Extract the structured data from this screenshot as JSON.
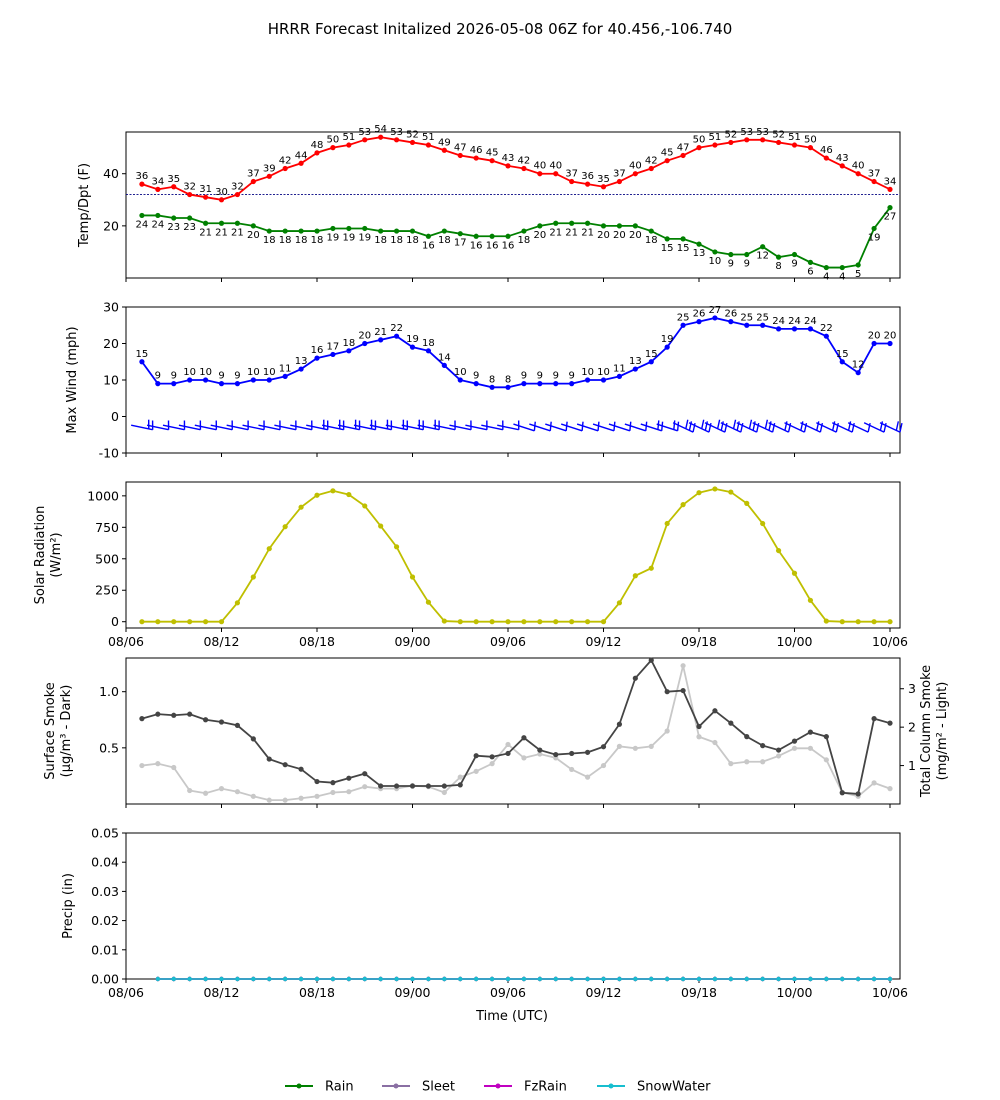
{
  "title": "HRRR Forecast Initalized 2026-05-08 06Z for 40.456,-106.740",
  "time_ticks": [
    "08/06",
    "08/12",
    "08/18",
    "09/00",
    "09/06",
    "09/12",
    "09/18",
    "10/00",
    "10/06"
  ],
  "xlabel": "Time (UTC)",
  "legend": [
    {
      "label": "Rain",
      "color": "#008000"
    },
    {
      "label": "Sleet",
      "color": "#8a6fa3"
    },
    {
      "label": "FzRain",
      "color": "#c000c0"
    },
    {
      "label": "SnowWater",
      "color": "#17becf"
    }
  ],
  "chart_data": [
    {
      "type": "line",
      "ylabel": "Temp/Dpt (F)",
      "ylim": [
        0,
        56
      ],
      "yticks": [
        20,
        40
      ],
      "x": [
        1,
        2,
        3,
        4,
        5,
        6,
        7,
        8,
        9,
        10,
        11,
        12,
        13,
        14,
        15,
        16,
        17,
        18,
        19,
        20,
        21,
        22,
        23,
        24,
        25,
        26,
        27,
        28,
        29,
        30,
        31,
        32,
        33,
        34,
        35,
        36,
        37,
        38,
        39,
        40,
        41,
        42,
        43,
        44,
        45,
        46,
        47,
        48
      ],
      "series": [
        {
          "name": "Temp",
          "color": "#ff0000",
          "values": [
            36,
            34,
            35,
            32,
            31,
            30,
            32,
            37,
            39,
            42,
            44,
            48,
            50,
            51,
            53,
            54,
            53,
            52,
            51,
            49,
            47,
            46,
            45,
            43,
            42,
            40,
            40,
            37,
            36,
            35,
            37,
            40,
            42,
            45,
            47,
            50,
            51,
            52,
            53,
            53,
            52,
            51,
            50,
            46,
            43,
            40,
            37,
            34
          ]
        },
        {
          "name": "Dewpoint",
          "color": "#008000",
          "values": [
            24,
            24,
            23,
            23,
            21,
            21,
            21,
            20,
            18,
            18,
            18,
            18,
            19,
            19,
            19,
            18,
            18,
            18,
            16,
            18,
            17,
            16,
            16,
            16,
            18,
            20,
            21,
            21,
            21,
            20,
            20,
            20,
            18,
            15,
            15,
            13,
            10,
            9,
            9,
            12,
            8,
            9,
            6,
            4,
            4,
            5,
            19,
            27
          ]
        }
      ],
      "reference_line": 32
    },
    {
      "type": "line",
      "ylabel": "Max Wind (mph)",
      "ylim": [
        -10,
        30
      ],
      "yticks": [
        -10,
        0,
        10,
        20,
        30
      ],
      "series": [
        {
          "name": "Max Wind",
          "color": "#0000ff",
          "values": [
            15,
            9,
            9,
            10,
            10,
            9,
            9,
            10,
            10,
            11,
            13,
            16,
            17,
            18,
            20,
            21,
            22,
            19,
            18,
            14,
            10,
            9,
            8,
            8,
            9,
            9,
            9,
            9,
            10,
            10,
            11,
            13,
            15,
            19,
            25,
            26,
            27,
            26,
            25,
            25,
            24,
            24,
            24,
            22,
            15,
            12,
            20,
            20
          ]
        }
      ],
      "wind_barbs": "yes"
    },
    {
      "type": "line",
      "ylabel": "Solar Radiation (W/m²)",
      "ylim": [
        -50,
        1110
      ],
      "yticks": [
        0,
        250,
        500,
        750,
        1000
      ],
      "series": [
        {
          "name": "Solar Radiation",
          "color": "#bfbf00",
          "values": [
            0,
            0,
            0,
            0,
            0,
            0,
            150,
            355,
            580,
            755,
            910,
            1005,
            1040,
            1010,
            920,
            760,
            595,
            355,
            155,
            5,
            0,
            0,
            0,
            0,
            0,
            0,
            0,
            0,
            0,
            0,
            150,
            365,
            425,
            780,
            930,
            1025,
            1055,
            1030,
            940,
            780,
            565,
            385,
            170,
            5,
            0,
            0,
            0,
            0
          ]
        }
      ]
    },
    {
      "type": "line",
      "ylabel": "Surface Smoke (μg/m³ - Dark)",
      "ylabel_right": "Total Column Smoke (mg/m² - Light)",
      "ylim": [
        0.0,
        1.3
      ],
      "yticks": [
        0.5,
        1.0
      ],
      "ylim_right": [
        0.0,
        3.8
      ],
      "yticks_right": [
        1,
        2,
        3
      ],
      "series": [
        {
          "name": "Surface Smoke",
          "color": "#444444",
          "values": [
            0.76,
            0.8,
            0.79,
            0.8,
            0.75,
            0.73,
            0.7,
            0.58,
            0.4,
            0.35,
            0.31,
            0.2,
            0.19,
            0.23,
            0.27,
            0.16,
            0.16,
            0.16,
            0.16,
            0.16,
            0.17,
            0.43,
            0.42,
            0.45,
            0.59,
            0.48,
            0.44,
            0.45,
            0.46,
            0.51,
            0.71,
            1.12,
            1.28,
            1.0,
            1.01,
            0.69,
            0.83,
            0.72,
            0.6,
            0.52,
            0.48,
            0.56,
            0.64,
            0.6,
            0.1,
            0.09,
            0.76,
            0.72
          ]
        },
        {
          "name": "Total Column Smoke",
          "color": "#c8c8c8",
          "values": [
            1.0,
            1.05,
            0.95,
            0.35,
            0.28,
            0.4,
            0.32,
            0.2,
            0.1,
            0.1,
            0.15,
            0.2,
            0.3,
            0.32,
            0.45,
            0.4,
            0.4,
            0.48,
            0.45,
            0.3,
            0.7,
            0.85,
            1.05,
            1.55,
            1.2,
            1.3,
            1.2,
            0.9,
            0.7,
            1.0,
            1.5,
            1.45,
            1.5,
            1.9,
            3.6,
            1.75,
            1.6,
            1.05,
            1.1,
            1.1,
            1.25,
            1.45,
            1.45,
            1.15,
            0.3,
            0.2,
            0.55,
            0.4
          ]
        }
      ]
    },
    {
      "type": "line",
      "ylabel": "Precip (in)",
      "ylim": [
        0.0,
        0.05
      ],
      "yticks": [
        "0.00",
        "0.01",
        "0.02",
        "0.03",
        "0.04",
        "0.05"
      ],
      "series": [
        {
          "name": "Rain",
          "color": "#008000",
          "values": [
            0,
            0,
            0,
            0,
            0,
            0,
            0,
            0,
            0,
            0,
            0,
            0,
            0,
            0,
            0,
            0,
            0,
            0,
            0,
            0,
            0,
            0,
            0,
            0,
            0,
            0,
            0,
            0,
            0,
            0,
            0,
            0,
            0,
            0,
            0,
            0,
            0,
            0,
            0,
            0,
            0,
            0,
            0,
            0,
            0,
            0,
            0
          ]
        },
        {
          "name": "Sleet",
          "color": "#8a6fa3",
          "values": [
            0,
            0,
            0,
            0,
            0,
            0,
            0,
            0,
            0,
            0,
            0,
            0,
            0,
            0,
            0,
            0,
            0,
            0,
            0,
            0,
            0,
            0,
            0,
            0,
            0,
            0,
            0,
            0,
            0,
            0,
            0,
            0,
            0,
            0,
            0,
            0,
            0,
            0,
            0,
            0,
            0,
            0,
            0,
            0,
            0,
            0,
            0
          ]
        },
        {
          "name": "FzRain",
          "color": "#c000c0",
          "values": [
            0,
            0,
            0,
            0,
            0,
            0,
            0,
            0,
            0,
            0,
            0,
            0,
            0,
            0,
            0,
            0,
            0,
            0,
            0,
            0,
            0,
            0,
            0,
            0,
            0,
            0,
            0,
            0,
            0,
            0,
            0,
            0,
            0,
            0,
            0,
            0,
            0,
            0,
            0,
            0,
            0,
            0,
            0,
            0,
            0,
            0,
            0
          ]
        },
        {
          "name": "SnowWater",
          "color": "#17becf",
          "values": [
            0,
            0,
            0,
            0,
            0,
            0,
            0,
            0,
            0,
            0,
            0,
            0,
            0,
            0,
            0,
            0,
            0,
            0,
            0,
            0,
            0,
            0,
            0,
            0,
            0,
            0,
            0,
            0,
            0,
            0,
            0,
            0,
            0,
            0,
            0,
            0,
            0,
            0,
            0,
            0,
            0,
            0,
            0,
            0,
            0,
            0,
            0
          ]
        }
      ]
    }
  ]
}
